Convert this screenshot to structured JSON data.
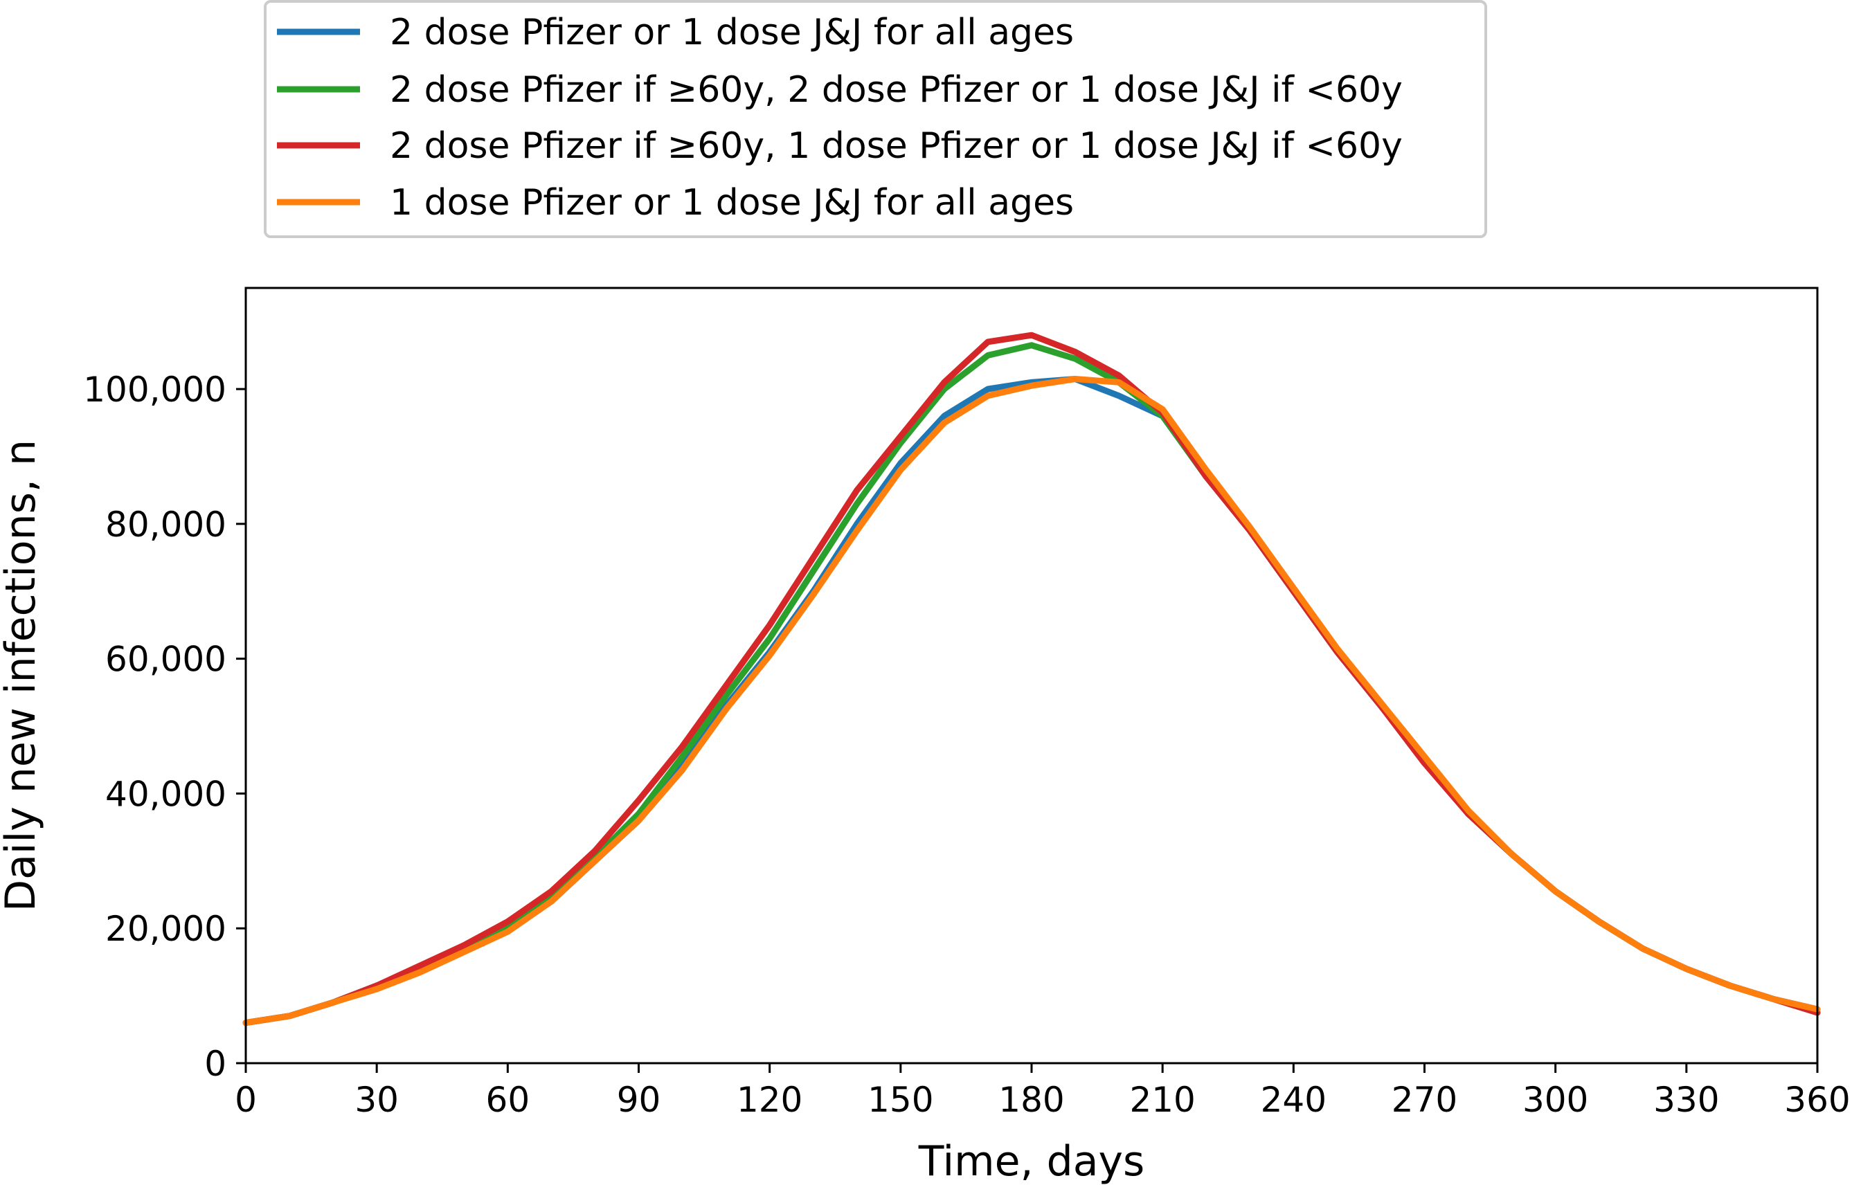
{
  "chart_data": {
    "type": "line",
    "title": "",
    "xlabel": "Time, days",
    "ylabel": "Daily new infections, n",
    "xlim": [
      0,
      360
    ],
    "ylim": [
      0,
      115000
    ],
    "grid": false,
    "legend_position": "top (outside plot)",
    "x_ticks": [
      0,
      30,
      60,
      90,
      120,
      150,
      180,
      210,
      240,
      270,
      300,
      330,
      360
    ],
    "x_tick_labels": [
      "0",
      "30",
      "60",
      "90",
      "120",
      "150",
      "180",
      "210",
      "240",
      "270",
      "300",
      "330",
      "360"
    ],
    "y_ticks": [
      0,
      20000,
      40000,
      60000,
      80000,
      100000
    ],
    "y_tick_labels": [
      "0",
      "20,000",
      "40,000",
      "60,000",
      "80,000",
      "100,000"
    ],
    "x": [
      0,
      10,
      20,
      30,
      40,
      50,
      60,
      70,
      80,
      90,
      100,
      110,
      120,
      130,
      140,
      150,
      160,
      170,
      180,
      190,
      200,
      210,
      220,
      230,
      240,
      250,
      260,
      270,
      280,
      290,
      300,
      310,
      320,
      330,
      340,
      350,
      360
    ],
    "series": [
      {
        "name": "2 dose Pfizer or 1 dose J&J for all ages",
        "color": "#1f77b4",
        "values": [
          6000,
          7000,
          9000,
          11500,
          14000,
          17000,
          20000,
          24000,
          30000,
          36000,
          44000,
          53000,
          61000,
          70000,
          80000,
          89000,
          96000,
          100000,
          101000,
          101500,
          99000,
          96000,
          87000,
          79000,
          70000,
          61000,
          53000,
          45000,
          37000,
          31000,
          25500,
          21000,
          17000,
          14000,
          11500,
          9500,
          8000
        ]
      },
      {
        "name": "2 dose Pfizer if ≥60y, 2 dose Pfizer or 1 dose J&J if <60y",
        "color": "#2ca02c",
        "values": [
          6000,
          7000,
          9000,
          11500,
          14000,
          17000,
          20000,
          24500,
          30500,
          37000,
          45500,
          54500,
          63000,
          73000,
          83000,
          92000,
          100000,
          105000,
          106500,
          104500,
          101000,
          96000,
          87000,
          79000,
          70000,
          61000,
          53000,
          45000,
          37000,
          31000,
          25500,
          21000,
          17000,
          14000,
          11500,
          9500,
          7500
        ]
      },
      {
        "name": "2 dose Pfizer if ≥60y, 1 dose Pfizer or 1 dose J&J if <60y",
        "color": "#d62728",
        "values": [
          6000,
          7000,
          9000,
          11500,
          14500,
          17500,
          21000,
          25500,
          31500,
          39000,
          47000,
          56000,
          65000,
          75000,
          85000,
          93000,
          101000,
          107000,
          108000,
          105500,
          102000,
          96500,
          87000,
          79000,
          70000,
          61000,
          53000,
          44500,
          37000,
          31000,
          25500,
          21000,
          17000,
          14000,
          11500,
          9500,
          7500
        ]
      },
      {
        "name": "1 dose Pfizer or 1 dose J&J for all ages",
        "color": "#ff7f0e",
        "values": [
          6000,
          7000,
          9000,
          11000,
          13500,
          16500,
          19500,
          24000,
          30000,
          36000,
          43500,
          52500,
          60500,
          69500,
          79000,
          88000,
          95000,
          99000,
          100500,
          101500,
          101000,
          97000,
          88000,
          79500,
          70500,
          61500,
          53500,
          45500,
          37500,
          31000,
          25500,
          21000,
          17000,
          14000,
          11500,
          9500,
          8000
        ]
      }
    ]
  }
}
